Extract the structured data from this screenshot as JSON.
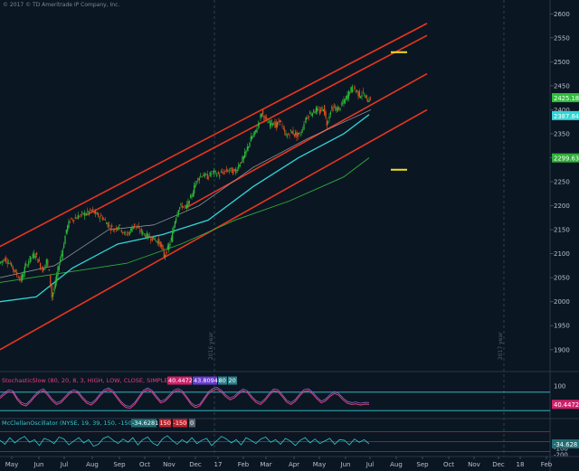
{
  "copyright": "© 2017 © TD Ameritrade IP Company, Inc.",
  "colors": {
    "background": "#0b1623",
    "up_candle": "#2fbf3a",
    "down_candle": "#e8501e",
    "channel": "#e8361e",
    "sma_short": "#9aa0a6",
    "sma_mid": "#31d6d6",
    "sma_long": "#2fae3a",
    "stoch": "#e0407c",
    "mcclellan": "#37c9d0",
    "target_marker": "#f0e020"
  },
  "year_markers": [
    {
      "label": "2016 year",
      "at": "Jan"
    },
    {
      "label": "2017 year",
      "at": "Jan"
    }
  ],
  "price_badges": [
    {
      "label": "2425.18",
      "color": "#2fbf3a"
    },
    {
      "label": "2387.84",
      "color": "#31d6d6"
    },
    {
      "label": "2299.63",
      "color": "#2fae3a"
    }
  ],
  "stoch_header": {
    "title": "StochasticSlow (80, 20, 8, 3, HIGH, LOW, CLOSE, SIMPLE, No)",
    "values": [
      "40.4472",
      "43.8094",
      "80",
      "20"
    ],
    "badge": "40.4472"
  },
  "mcc_header": {
    "title": "McClellanOscillator (NYSE, 19, 39, 150, -150, no)",
    "values": [
      "-34.6281",
      "150",
      "-150",
      "0"
    ],
    "badge": "-34.628"
  },
  "chart_data": [
    {
      "type": "candlestick",
      "title": "",
      "x_ticks": [
        "May",
        "Jun",
        "Jul",
        "Aug",
        "Sep",
        "Oct",
        "Nov",
        "Dec",
        "17",
        "Feb",
        "Mar",
        "Apr",
        "May",
        "Jun",
        "Jul",
        "Aug",
        "Sep",
        "Oct",
        "Nov",
        "Dec",
        "18",
        "Feb"
      ],
      "y_ticks": [
        1900,
        1950,
        2000,
        2050,
        2100,
        2150,
        2200,
        2250,
        2300,
        2350,
        2400,
        2450,
        2500,
        2550,
        2600
      ],
      "ylim": [
        1860,
        2625
      ],
      "close_path": [
        [
          0,
          2080
        ],
        [
          6,
          2090
        ],
        [
          12,
          2078
        ],
        [
          18,
          2060
        ],
        [
          24,
          2045
        ],
        [
          28,
          2070
        ],
        [
          34,
          2090
        ],
        [
          40,
          2100
        ],
        [
          44,
          2080
        ],
        [
          48,
          2065
        ],
        [
          52,
          2085
        ],
        [
          55,
          2060
        ],
        [
          58,
          2010
        ],
        [
          62,
          2040
        ],
        [
          66,
          2080
        ],
        [
          70,
          2110
        ],
        [
          74,
          2150
        ],
        [
          78,
          2170
        ],
        [
          84,
          2175
        ],
        [
          90,
          2180
        ],
        [
          96,
          2185
        ],
        [
          102,
          2190
        ],
        [
          108,
          2180
        ],
        [
          114,
          2175
        ],
        [
          120,
          2160
        ],
        [
          126,
          2150
        ],
        [
          132,
          2160
        ],
        [
          138,
          2140
        ],
        [
          144,
          2145
        ],
        [
          148,
          2160
        ],
        [
          154,
          2150
        ],
        [
          160,
          2140
        ],
        [
          166,
          2135
        ],
        [
          172,
          2130
        ],
        [
          178,
          2120
        ],
        [
          182,
          2095
        ],
        [
          186,
          2110
        ],
        [
          190,
          2130
        ],
        [
          194,
          2170
        ],
        [
          198,
          2195
        ],
        [
          202,
          2200
        ],
        [
          206,
          2195
        ],
        [
          210,
          2210
        ],
        [
          214,
          2230
        ],
        [
          218,
          2255
        ],
        [
          224,
          2265
        ],
        [
          230,
          2260
        ],
        [
          236,
          2270
        ],
        [
          242,
          2265
        ],
        [
          248,
          2270
        ],
        [
          254,
          2275
        ],
        [
          260,
          2270
        ],
        [
          266,
          2290
        ],
        [
          270,
          2300
        ],
        [
          274,
          2320
        ],
        [
          278,
          2340
        ],
        [
          282,
          2350
        ],
        [
          286,
          2370
        ],
        [
          290,
          2395
        ],
        [
          294,
          2380
        ],
        [
          298,
          2370
        ],
        [
          302,
          2375
        ],
        [
          306,
          2365
        ],
        [
          310,
          2380
        ],
        [
          314,
          2355
        ],
        [
          318,
          2345
        ],
        [
          322,
          2355
        ],
        [
          326,
          2350
        ],
        [
          330,
          2345
        ],
        [
          334,
          2355
        ],
        [
          338,
          2380
        ],
        [
          342,
          2390
        ],
        [
          346,
          2395
        ],
        [
          350,
          2400
        ],
        [
          354,
          2395
        ],
        [
          358,
          2405
        ],
        [
          362,
          2370
        ],
        [
          366,
          2400
        ],
        [
          370,
          2405
        ],
        [
          374,
          2400
        ],
        [
          378,
          2410
        ],
        [
          382,
          2420
        ],
        [
          386,
          2435
        ],
        [
          390,
          2445
        ],
        [
          394,
          2440
        ],
        [
          398,
          2430
        ],
        [
          402,
          2435
        ],
        [
          406,
          2420
        ],
        [
          410,
          2425
        ]
      ],
      "channel_lines": [
        [
          [
            0,
            2115
          ],
          [
            472,
            2580
          ]
        ],
        [
          [
            95,
            2180
          ],
          [
            472,
            2555
          ]
        ],
        [
          [
            205,
            2195
          ],
          [
            472,
            2475
          ]
        ],
        [
          [
            0,
            1900
          ],
          [
            472,
            2400
          ]
        ]
      ],
      "sma_short": [
        [
          0,
          2050
        ],
        [
          60,
          2075
        ],
        [
          120,
          2150
        ],
        [
          170,
          2160
        ],
        [
          220,
          2200
        ],
        [
          280,
          2280
        ],
        [
          340,
          2340
        ],
        [
          410,
          2400
        ]
      ],
      "sma_mid": [
        [
          0,
          2000
        ],
        [
          40,
          2010
        ],
        [
          80,
          2070
        ],
        [
          130,
          2120
        ],
        [
          180,
          2140
        ],
        [
          230,
          2170
        ],
        [
          280,
          2240
        ],
        [
          330,
          2300
        ],
        [
          380,
          2350
        ],
        [
          408,
          2390
        ]
      ],
      "sma_long": [
        [
          0,
          2040
        ],
        [
          70,
          2060
        ],
        [
          140,
          2080
        ],
        [
          200,
          2120
        ],
        [
          260,
          2170
        ],
        [
          320,
          2210
        ],
        [
          380,
          2260
        ],
        [
          408,
          2300
        ]
      ],
      "target_levels": [
        2520,
        2275
      ]
    },
    {
      "type": "line",
      "title": "StochasticSlow",
      "ylim": [
        0,
        100
      ],
      "y_ticks": [
        100
      ],
      "levels": [
        80,
        20
      ],
      "values": [
        60,
        72,
        82,
        78,
        55,
        40,
        35,
        48,
        65,
        78,
        85,
        70,
        52,
        40,
        45,
        60,
        75,
        82,
        76,
        58,
        44,
        38,
        50,
        68,
        82,
        88,
        79,
        60,
        42,
        30,
        28,
        40,
        60,
        80,
        88,
        80,
        62,
        45,
        50,
        65,
        80,
        86,
        78,
        60,
        40,
        30,
        35,
        55,
        75,
        86,
        90,
        80,
        65,
        55,
        62,
        75,
        84,
        78,
        60,
        46,
        40,
        52,
        70,
        84,
        82,
        66,
        48,
        40,
        50,
        68,
        82,
        85,
        74,
        58,
        45,
        52,
        66,
        76,
        70,
        55,
        44,
        40,
        42,
        38,
        41,
        40
      ]
    },
    {
      "type": "line",
      "title": "McClellanOscillator",
      "ylim": [
        -200,
        200
      ],
      "y_ticks": [
        -100,
        -200
      ],
      "levels": [
        150,
        -150,
        0
      ],
      "values": [
        20,
        -40,
        60,
        -20,
        40,
        80,
        -10,
        30,
        -60,
        50,
        20,
        -30,
        70,
        40,
        -50,
        10,
        60,
        -20,
        30,
        -70,
        -40,
        50,
        80,
        20,
        -30,
        40,
        -10,
        60,
        -50,
        30,
        70,
        -20,
        -60,
        40,
        90,
        20,
        -40,
        30,
        -20,
        60,
        -30,
        20,
        50,
        -60,
        10,
        80,
        40,
        -20,
        30,
        -50,
        60,
        20,
        -30,
        40,
        70,
        -10,
        30,
        -40,
        50,
        10,
        -60,
        20,
        60,
        -20,
        40,
        -30,
        10,
        50,
        -40,
        30,
        20,
        -50,
        40,
        -10,
        30,
        -35
      ]
    }
  ]
}
